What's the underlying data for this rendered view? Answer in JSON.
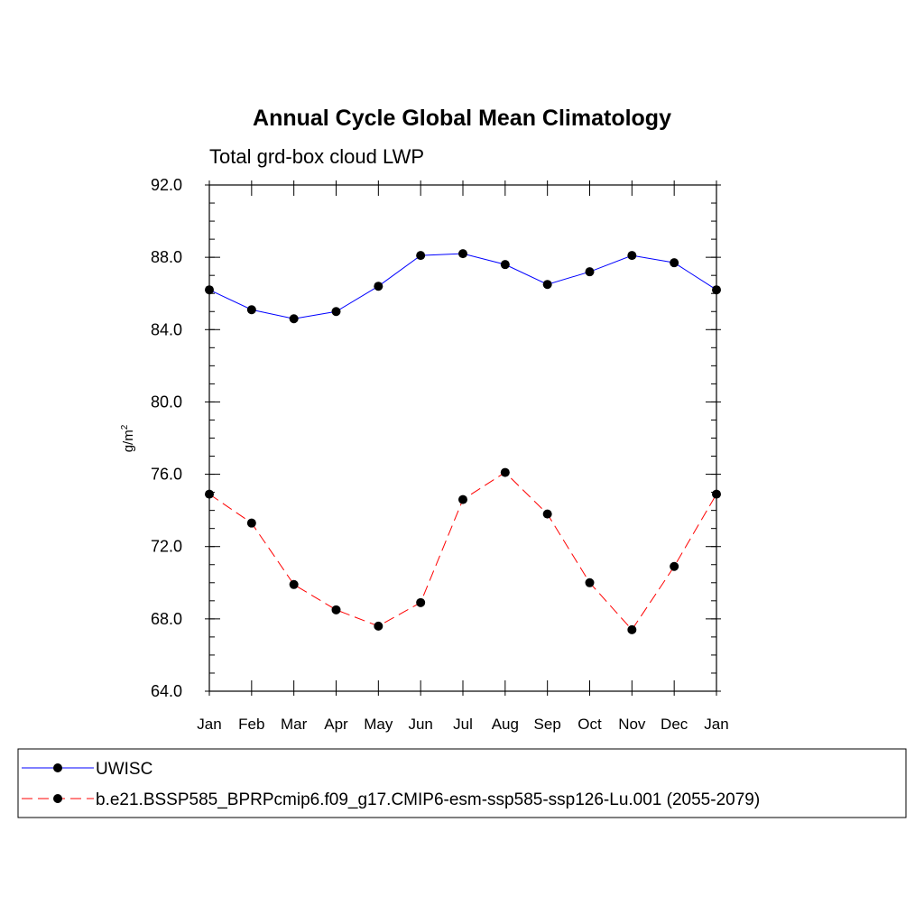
{
  "chart_data": {
    "type": "line",
    "title": "Annual Cycle Global Mean Climatology",
    "subtitle": "Total grd-box cloud LWP",
    "ylabel": "g/m",
    "ylabel_superscript": "2",
    "categories": [
      "Jan",
      "Feb",
      "Mar",
      "Apr",
      "May",
      "Jun",
      "Jul",
      "Aug",
      "Sep",
      "Oct",
      "Nov",
      "Dec",
      "Jan"
    ],
    "ylim": [
      64,
      92
    ],
    "yticks": [
      "64.0",
      "68.0",
      "72.0",
      "76.0",
      "80.0",
      "84.0",
      "88.0",
      "92.0"
    ],
    "yminor_step": 1,
    "grid": false,
    "legend_position": "bottom",
    "series": [
      {
        "name": "UWISC",
        "color": "#0000ff",
        "dash": "solid",
        "values": [
          86.2,
          85.1,
          84.6,
          85.0,
          86.4,
          88.1,
          88.2,
          87.6,
          86.5,
          87.2,
          88.1,
          87.7,
          86.2
        ]
      },
      {
        "name": "b.e21.BSSP585_BPRPcmip6.f09_g17.CMIP6-esm-ssp585-ssp126-Lu.001 (2055-2079)",
        "color": "#ff0000",
        "dash": "dashed",
        "values": [
          74.9,
          73.3,
          69.9,
          68.5,
          67.6,
          68.9,
          74.6,
          76.1,
          73.8,
          70.0,
          67.4,
          70.9,
          74.9
        ]
      }
    ]
  }
}
